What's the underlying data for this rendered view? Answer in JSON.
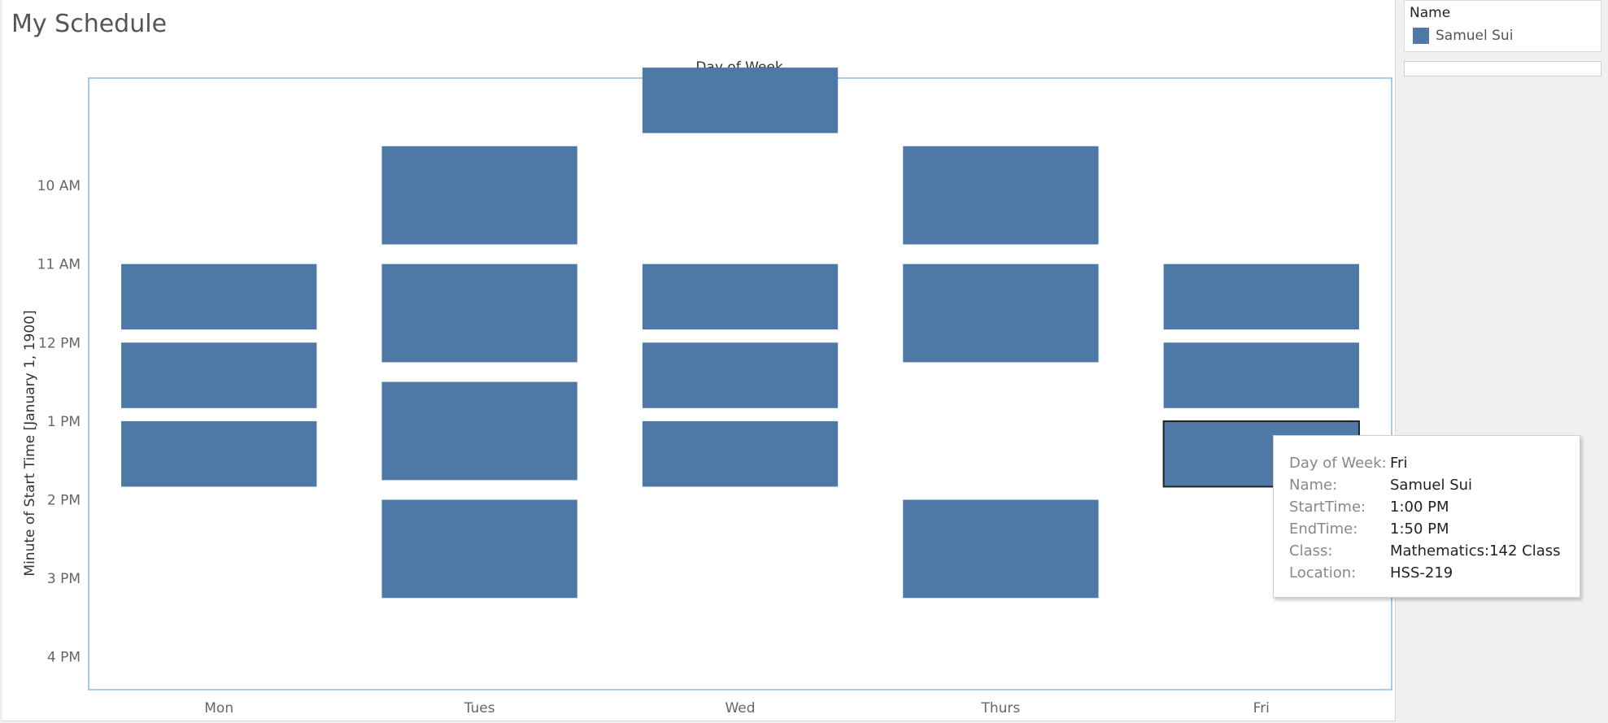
{
  "title": "My Schedule",
  "legend": {
    "title": "Name",
    "items": [
      {
        "label": "Samuel Sui",
        "color": "#4e79a7"
      }
    ]
  },
  "tooltip": {
    "rows": [
      {
        "key": "Day of Week:",
        "value": "Fri"
      },
      {
        "key": "Name:",
        "value": "Samuel Sui"
      },
      {
        "key": "StartTime:",
        "value": "1:00 PM"
      },
      {
        "key": "EndTime:",
        "value": "1:50 PM"
      },
      {
        "key": "Class:",
        "value": "Mathematics:142 Class"
      },
      {
        "key": "Location:",
        "value": "HSS-219"
      }
    ]
  },
  "chart_data": {
    "type": "bar",
    "title": "My Schedule",
    "column_header": "Day of Week",
    "ylabel": "Minute of Start Time [January 1, 1900]",
    "categories": [
      "Mon",
      "Tues",
      "Wed",
      "Thurs",
      "Fri"
    ],
    "y_ticks": [
      "10 AM",
      "11 AM",
      "12 PM",
      "1 PM",
      "2 PM",
      "3 PM",
      "4 PM"
    ],
    "y_tick_minutes": [
      600,
      660,
      720,
      780,
      840,
      900,
      960
    ],
    "ylim_minutes": [
      518,
      985
    ],
    "bar_color": "#4e79a7",
    "series": [
      {
        "name": "Samuel Sui",
        "blocks": [
          {
            "day": "Mon",
            "start": "11:00 AM",
            "end": "11:50 AM"
          },
          {
            "day": "Mon",
            "start": "12:00 PM",
            "end": "12:50 PM"
          },
          {
            "day": "Mon",
            "start": "1:00 PM",
            "end": "1:50 PM"
          },
          {
            "day": "Tues",
            "start": "9:30 AM",
            "end": "10:45 AM"
          },
          {
            "day": "Tues",
            "start": "11:00 AM",
            "end": "12:15 PM"
          },
          {
            "day": "Tues",
            "start": "12:30 PM",
            "end": "1:45 PM"
          },
          {
            "day": "Tues",
            "start": "2:00 PM",
            "end": "3:15 PM"
          },
          {
            "day": "Wed",
            "start": "8:30 AM",
            "end": "9:20 AM"
          },
          {
            "day": "Wed",
            "start": "11:00 AM",
            "end": "11:50 AM"
          },
          {
            "day": "Wed",
            "start": "12:00 PM",
            "end": "12:50 PM"
          },
          {
            "day": "Wed",
            "start": "1:00 PM",
            "end": "1:50 PM"
          },
          {
            "day": "Thurs",
            "start": "9:30 AM",
            "end": "10:45 AM"
          },
          {
            "day": "Thurs",
            "start": "11:00 AM",
            "end": "12:15 PM"
          },
          {
            "day": "Thurs",
            "start": "2:00 PM",
            "end": "3:15 PM"
          },
          {
            "day": "Fri",
            "start": "11:00 AM",
            "end": "11:50 AM"
          },
          {
            "day": "Fri",
            "start": "12:00 PM",
            "end": "12:50 PM"
          },
          {
            "day": "Fri",
            "start": "1:00 PM",
            "end": "1:50 PM",
            "selected": true
          }
        ]
      }
    ]
  }
}
